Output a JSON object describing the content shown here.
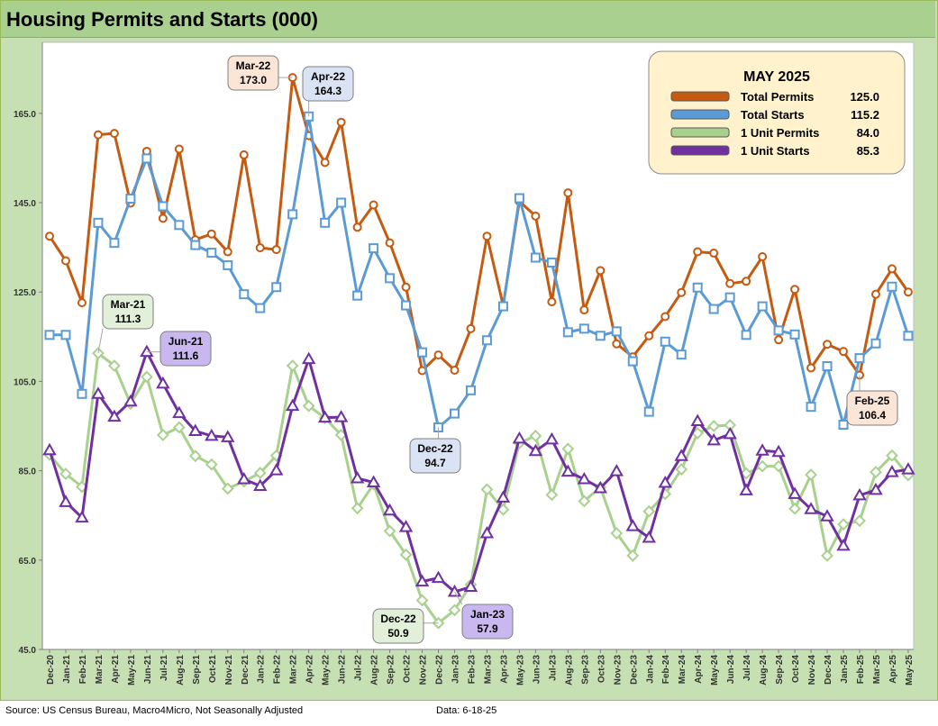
{
  "header": {
    "title": "Housing Permits and Starts (000)"
  },
  "footer": {
    "source": "Source: US Census Bureau, Macro4Micro, Not Seasonally Adjusted",
    "date": "Data: 6-18-25"
  },
  "colors": {
    "total_permits": "#c55a11",
    "total_starts": "#5b9bd5",
    "unit_permits": "#a9d18e",
    "unit_starts": "#7030a0",
    "background": "#c6e0b4",
    "plot_area": "#ffffff"
  },
  "chart_data": {
    "type": "line",
    "title": "Housing Permits and Starts (000)",
    "xlabel": "",
    "ylabel": "",
    "ylim": [
      45,
      175
    ],
    "yticks": [
      "45.0",
      "65.0",
      "85.0",
      "105.0",
      "125.0",
      "145.0",
      "165.0"
    ],
    "grid": false,
    "legend_position": "top-right",
    "categories": [
      "Dec-20",
      "Jan-21",
      "Feb-21",
      "Mar-21",
      "Apr-21",
      "May-21",
      "Jun-21",
      "Jul-21",
      "Aug-21",
      "Sep-21",
      "Oct-21",
      "Nov-21",
      "Dec-21",
      "Jan-22",
      "Feb-22",
      "Mar-22",
      "Apr-22",
      "May-22",
      "Jun-22",
      "Jul-22",
      "Aug-22",
      "Sep-22",
      "Oct-22",
      "Nov-22",
      "Dec-22",
      "Jan-23",
      "Feb-23",
      "Mar-23",
      "Apr-23",
      "May-23",
      "Jun-23",
      "Jul-23",
      "Aug-23",
      "Sep-23",
      "Oct-23",
      "Nov-23",
      "Dec-23",
      "Jan-24",
      "Feb-24",
      "Mar-24",
      "Apr-24",
      "May-24",
      "Jun-24",
      "Jul-24",
      "Aug-24",
      "Sep-24",
      "Oct-24",
      "Nov-24",
      "Dec-24",
      "Jan-25",
      "Feb-25",
      "Mar-25",
      "Apr-25",
      "May-25"
    ],
    "series": [
      {
        "name": "Total Permits",
        "key": "total_permits",
        "marker": "circle",
        "values": [
          137.5,
          132.0,
          122.6,
          160.2,
          160.5,
          144.9,
          156.5,
          141.5,
          157.0,
          136.7,
          138.0,
          134.0,
          155.7,
          134.9,
          134.5,
          173.0,
          160.0,
          154.0,
          163.0,
          139.5,
          144.5,
          136.0,
          126.1,
          107.4,
          110.9,
          107.5,
          116.8,
          137.5,
          122.0,
          145.3,
          142.0,
          122.8,
          147.2,
          121.0,
          129.8,
          113.4,
          110.5,
          115.2,
          119.5,
          124.9,
          134.0,
          133.7,
          126.9,
          127.4,
          132.9,
          114.3,
          125.6,
          108.0,
          113.3,
          111.7,
          106.4,
          124.5,
          130.2,
          125.0
        ]
      },
      {
        "name": "Total Starts",
        "key": "total_starts",
        "marker": "square",
        "values": [
          115.4,
          115.4,
          102.2,
          140.5,
          136.0,
          145.9,
          154.9,
          144.2,
          140.0,
          135.5,
          133.8,
          131.0,
          124.5,
          121.4,
          126.1,
          142.4,
          164.3,
          140.5,
          145.0,
          124.2,
          134.8,
          128.1,
          122.0,
          111.5,
          94.7,
          97.8,
          103.0,
          114.2,
          121.8,
          146.0,
          132.7,
          131.6,
          116.0,
          116.8,
          115.2,
          116.2,
          109.5,
          98.2,
          113.9,
          111.0,
          126.0,
          121.2,
          123.8,
          115.4,
          121.8,
          116.4,
          115.5,
          99.3,
          108.4,
          95.3,
          110.2,
          113.5,
          126.2,
          115.2
        ]
      },
      {
        "name": "1 Unit Permits",
        "key": "unit_permits",
        "marker": "diamond",
        "values": [
          88.6,
          84.3,
          81.4,
          111.3,
          108.5,
          100.0,
          106.0,
          93.0,
          94.7,
          88.3,
          86.4,
          81.0,
          82.6,
          84.5,
          88.4,
          108.5,
          99.5,
          96.8,
          93.0,
          76.6,
          82.0,
          71.5,
          66.2,
          56.0,
          50.9,
          53.8,
          59.5,
          80.8,
          76.3,
          91.2,
          92.8,
          79.6,
          89.9,
          78.2,
          81.3,
          71.0,
          66.0,
          75.9,
          79.8,
          85.3,
          93.4,
          95.0,
          95.2,
          84.4,
          86.0,
          86.0,
          76.5,
          84.1,
          66.0,
          73.0,
          73.8,
          84.7,
          88.4,
          84.0
        ]
      },
      {
        "name": "1 Unit Starts",
        "key": "unit_starts",
        "marker": "triangle",
        "values": [
          89.6,
          78.0,
          74.5,
          102.2,
          97.1,
          100.5,
          111.6,
          104.5,
          97.9,
          93.9,
          92.8,
          92.5,
          83.1,
          81.6,
          85.1,
          99.5,
          110.0,
          96.9,
          97.0,
          83.3,
          82.4,
          76.1,
          72.4,
          60.2,
          61.0,
          57.9,
          59.0,
          71.0,
          79.0,
          92.2,
          89.4,
          92.0,
          84.8,
          83.1,
          81.1,
          84.9,
          72.6,
          70.0,
          82.3,
          88.3,
          96.1,
          91.8,
          93.2,
          80.6,
          89.5,
          89.2,
          79.8,
          76.4,
          74.8,
          68.2,
          79.5,
          80.7,
          84.7,
          85.3
        ]
      }
    ],
    "callouts": [
      {
        "key": "total_permits",
        "month": "Mar-22",
        "label": "Mar-22",
        "value": "173.0"
      },
      {
        "key": "total_starts",
        "month": "Apr-22",
        "label": "Apr-22",
        "value": "164.3"
      },
      {
        "key": "unit_permits",
        "month": "Mar-21",
        "label": "Mar-21",
        "value": "111.3"
      },
      {
        "key": "unit_starts",
        "month": "Jun-21",
        "label": "Jun-21",
        "value": "111.6"
      },
      {
        "key": "total_starts",
        "month": "Dec-22",
        "label": "Dec-22",
        "value": "94.7"
      },
      {
        "key": "unit_permits",
        "month": "Dec-22",
        "label": "Dec-22",
        "value": "50.9"
      },
      {
        "key": "unit_starts",
        "month": "Jan-23",
        "label": "Jan-23",
        "value": "57.9"
      },
      {
        "key": "total_permits",
        "month": "Feb-25",
        "label": "Feb-25",
        "value": "106.4"
      }
    ],
    "legend": {
      "title": "MAY 2025",
      "items": [
        {
          "key": "total_permits",
          "label": "Total Permits",
          "value": "125.0"
        },
        {
          "key": "total_starts",
          "label": "Total Starts",
          "value": "115.2"
        },
        {
          "key": "unit_permits",
          "label": "1 Unit Permits",
          "value": "84.0"
        },
        {
          "key": "unit_starts",
          "label": "1 Unit Starts",
          "value": "85.3"
        }
      ]
    }
  }
}
